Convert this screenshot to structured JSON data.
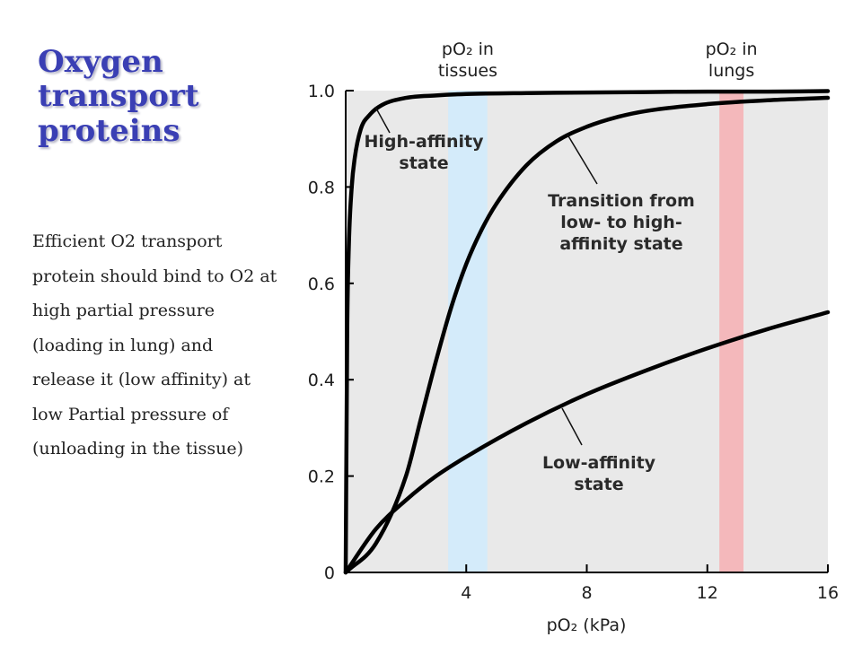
{
  "slide": {
    "title_lines": [
      "Oxygen",
      "transport",
      "proteins"
    ],
    "body": "Efficient O2 transport protein should bind to O2 at high partial pressure (loading in lung) and release it (low affinity) at low Partial pressure of (unloading in the tissue)"
  },
  "chart_data": {
    "type": "line",
    "xlabel": "pO₂ (kPa)",
    "ylabel": "",
    "xlim": [
      0,
      16
    ],
    "ylim": [
      0,
      1.0
    ],
    "x_ticks": [
      "4",
      "8",
      "12",
      "16"
    ],
    "y_ticks": [
      "0",
      "0.2",
      "0.4",
      "0.6",
      "0.8",
      "1.0"
    ],
    "grid": false,
    "background_color": "#e9e9e9",
    "line_color": "#000000",
    "bands": [
      {
        "label_lines": [
          "pO₂ in",
          "tissues"
        ],
        "x_range": [
          3.4,
          4.7
        ],
        "color": "#d4ebfa"
      },
      {
        "label_lines": [
          "pO₂ in",
          "lungs"
        ],
        "x_range": [
          12.4,
          13.2
        ],
        "color": "#f4b8bb"
      }
    ],
    "series": [
      {
        "annotation": [
          "High-affinity",
          "state"
        ],
        "x": [
          0,
          0.05,
          0.1,
          0.2,
          0.3,
          0.5,
          0.8,
          1.2,
          2,
          3,
          4,
          6,
          8,
          10,
          12,
          14,
          16
        ],
        "y": [
          0,
          0.5,
          0.67,
          0.8,
          0.86,
          0.92,
          0.95,
          0.97,
          0.985,
          0.99,
          0.993,
          0.995,
          0.996,
          0.997,
          0.998,
          0.998,
          0.999
        ]
      },
      {
        "annotation": [
          "Transition from",
          "low- to high-",
          "affinity state"
        ],
        "x": [
          0,
          1,
          2,
          2.5,
          3,
          3.5,
          4,
          4.5,
          5,
          6,
          7,
          8,
          9,
          10,
          12,
          14,
          16
        ],
        "y": [
          0,
          0.06,
          0.2,
          0.32,
          0.44,
          0.55,
          0.64,
          0.71,
          0.765,
          0.845,
          0.895,
          0.925,
          0.945,
          0.958,
          0.972,
          0.98,
          0.985
        ]
      },
      {
        "annotation": [
          "Low-affinity",
          "state"
        ],
        "x": [
          0,
          1,
          2,
          3,
          4,
          6,
          8,
          10,
          12,
          14,
          16
        ],
        "y": [
          0,
          0.09,
          0.15,
          0.2,
          0.24,
          0.31,
          0.37,
          0.42,
          0.465,
          0.505,
          0.54
        ]
      }
    ]
  }
}
